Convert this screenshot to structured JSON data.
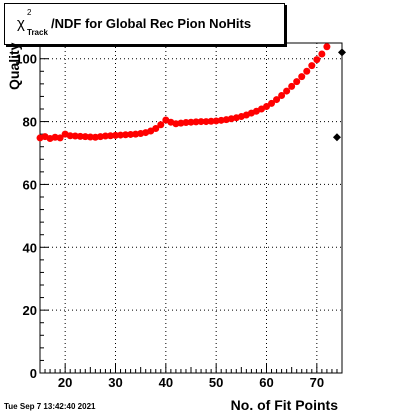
{
  "title": {
    "symbol": "χ",
    "superscript": "2",
    "subscript": "Track",
    "text": "/NDF for Global Rec Pion NoHits"
  },
  "timestamp": "Tue Sep  7 13:42:40 2021",
  "colors": {
    "series": "#ff0000",
    "outlier": "#000000",
    "grid": "#000000"
  },
  "chart_data": {
    "type": "scatter",
    "xlabel": "No. of Fit Points",
    "ylabel": "Quality",
    "xlim": [
      15,
      75
    ],
    "ylim": [
      0,
      105
    ],
    "xticks": [
      20,
      30,
      40,
      50,
      60,
      70
    ],
    "yticks": [
      0,
      20,
      40,
      60,
      80,
      100
    ],
    "grid": true,
    "series": [
      {
        "color": "#ff0000",
        "x": [
          15,
          16,
          17,
          18,
          19,
          20,
          21,
          22,
          23,
          24,
          25,
          26,
          27,
          28,
          29,
          30,
          31,
          32,
          33,
          34,
          35,
          36,
          37,
          38,
          39,
          40,
          41,
          42,
          43,
          44,
          45,
          46,
          47,
          48,
          49,
          50,
          51,
          52,
          53,
          54,
          55,
          56,
          57,
          58,
          59,
          60,
          61,
          62,
          63,
          64,
          65,
          66,
          67,
          68,
          69,
          70,
          71,
          72
        ],
        "y": [
          74.8,
          75.2,
          74.6,
          75.0,
          74.8,
          76.0,
          75.5,
          75.4,
          75.3,
          75.2,
          75.1,
          75.0,
          75.2,
          75.4,
          75.5,
          75.6,
          75.7,
          75.8,
          75.9,
          76.0,
          76.2,
          76.5,
          77.0,
          77.8,
          79.0,
          80.5,
          79.8,
          79.3,
          79.5,
          79.7,
          79.8,
          79.9,
          80.0,
          80.0,
          80.1,
          80.2,
          80.4,
          80.6,
          80.9,
          81.2,
          81.6,
          82.1,
          82.7,
          83.3,
          84.0,
          84.8,
          85.8,
          87.0,
          88.3,
          89.7,
          91.2,
          92.7,
          94.3,
          96.0,
          97.8,
          99.7,
          101.5,
          103.8
        ]
      }
    ],
    "outliers": {
      "x": [
        74,
        75
      ],
      "y": [
        75,
        102
      ]
    }
  }
}
